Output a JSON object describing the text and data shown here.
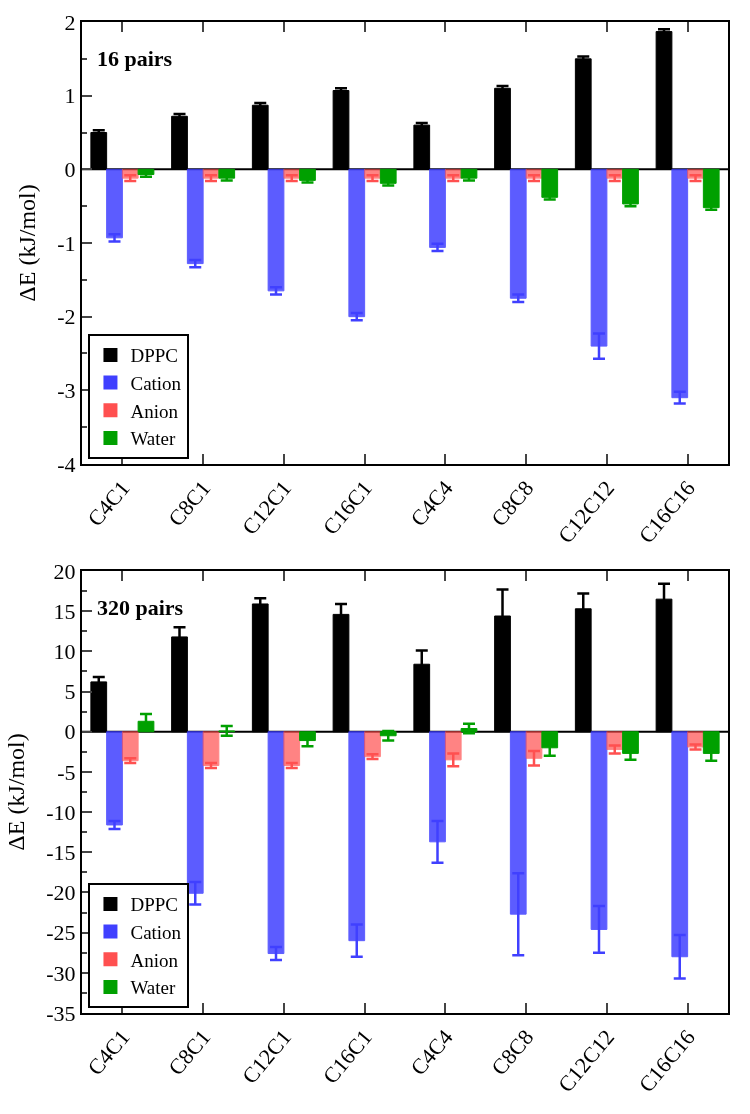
{
  "chart_data": [
    {
      "type": "bar",
      "annotations": [
        "16 pairs"
      ],
      "ylabel": "ΔE (kJ/mol)",
      "categories": [
        "C4C1",
        "C8C1",
        "C12C1",
        "C16C1",
        "C4C4",
        "C8C8",
        "C12C12",
        "C16C16"
      ],
      "ylim": [
        -4,
        2
      ],
      "yticks": [
        -4,
        -3,
        -2,
        -1,
        0,
        1,
        2
      ],
      "ref_lines": [
        {
          "axis": "y",
          "value": 0,
          "color": "#000000"
        }
      ],
      "legend": "bottom left",
      "series": [
        {
          "name": "DPPC",
          "color": "#000000",
          "values": [
            0.5,
            0.72,
            0.87,
            1.07,
            0.6,
            1.1,
            1.5,
            1.87
          ],
          "errors": [
            0.03,
            0.03,
            0.03,
            0.03,
            0.03,
            0.03,
            0.03,
            0.03
          ]
        },
        {
          "name": "Cation",
          "color": "#4040ff",
          "values": [
            -0.93,
            -1.28,
            -1.65,
            -2.0,
            -1.06,
            -1.75,
            -2.4,
            -3.1
          ],
          "errors": [
            0.05,
            0.05,
            0.05,
            0.05,
            0.05,
            0.05,
            0.17,
            0.08
          ]
        },
        {
          "name": "Anion",
          "color": "#ff5050",
          "values": [
            -0.12,
            -0.12,
            -0.12,
            -0.12,
            -0.12,
            -0.12,
            -0.12,
            -0.12
          ],
          "errors": [
            0.04,
            0.04,
            0.04,
            0.04,
            0.04,
            0.04,
            0.04,
            0.04
          ]
        },
        {
          "name": "Water",
          "color": "#00a000",
          "values": [
            -0.07,
            -0.12,
            -0.15,
            -0.19,
            -0.12,
            -0.38,
            -0.47,
            -0.52
          ],
          "errors": [
            0.03,
            0.03,
            0.03,
            0.03,
            0.03,
            0.03,
            0.03,
            0.03
          ]
        }
      ]
    },
    {
      "type": "bar",
      "annotations": [
        "320 pairs"
      ],
      "ylabel": "ΔE (kJ/mol)",
      "categories": [
        "C4C1",
        "C8C1",
        "C12C1",
        "C16C1",
        "C4C4",
        "C8C8",
        "C12C12",
        "C16C16"
      ],
      "ylim": [
        -35,
        20
      ],
      "yticks": [
        -35,
        -30,
        -25,
        -20,
        -15,
        -10,
        -5,
        0,
        5,
        10,
        15,
        20
      ],
      "ref_lines": [
        {
          "axis": "y",
          "value": 0,
          "color": "#000000"
        }
      ],
      "legend": "bottom left",
      "series": [
        {
          "name": "DPPC",
          "color": "#000000",
          "values": [
            6.2,
            11.8,
            15.9,
            14.6,
            8.4,
            14.4,
            15.3,
            16.5
          ],
          "errors": [
            0.6,
            1.2,
            0.7,
            1.3,
            1.7,
            3.3,
            1.9,
            1.9
          ]
        },
        {
          "name": "Cation",
          "color": "#4040ff",
          "values": [
            -11.6,
            -20.1,
            -27.6,
            -26.0,
            -13.7,
            -22.7,
            -24.6,
            -28.0
          ],
          "errors": [
            0.5,
            1.4,
            0.8,
            2.0,
            2.6,
            5.1,
            2.9,
            2.7
          ]
        },
        {
          "name": "Anion",
          "color": "#ff5050",
          "values": [
            -3.6,
            -4.2,
            -4.2,
            -3.1,
            -3.5,
            -3.3,
            -2.2,
            -1.9
          ],
          "errors": [
            0.3,
            0.3,
            0.3,
            0.3,
            0.8,
            0.9,
            0.5,
            0.3
          ]
        },
        {
          "name": "Water",
          "color": "#00a000",
          "values": [
            1.3,
            0.1,
            -1.1,
            -0.5,
            0.4,
            -2.0,
            -2.7,
            -2.7
          ],
          "errors": [
            0.9,
            0.6,
            0.7,
            0.6,
            0.6,
            1.0,
            0.8,
            0.9
          ]
        }
      ]
    }
  ]
}
